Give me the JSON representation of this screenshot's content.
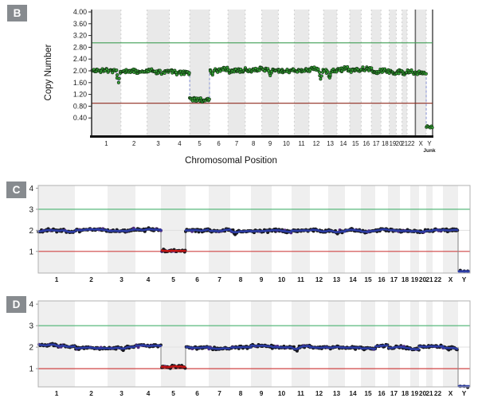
{
  "panels": {
    "b": {
      "badge": "B",
      "ylabel": "Copy Number",
      "xlabel": "Chromosomal Position"
    },
    "c": {
      "badge": "C"
    },
    "d": {
      "badge": "D"
    }
  },
  "chart_data": [
    {
      "panel": "B",
      "type": "scatter",
      "title": "",
      "ylabel": "Copy Number",
      "xlabel": "Chromosomal Position",
      "categories": [
        "1",
        "2",
        "3",
        "4",
        "5",
        "6",
        "7",
        "8",
        "9",
        "10",
        "11",
        "12",
        "13",
        "14",
        "15",
        "16",
        "17",
        "18",
        "19",
        "20",
        "21",
        "22",
        "X",
        "Y"
      ],
      "last_category_sublabel": "Junk",
      "category_weights": [
        46,
        41,
        35,
        32,
        31,
        29,
        27,
        26,
        26,
        25,
        23,
        23,
        21,
        20,
        18,
        16,
        15,
        13,
        11,
        9,
        8,
        13,
        17,
        10
      ],
      "ylim": [
        -0.19,
        4.08
      ],
      "yticks": [
        4.0,
        3.6,
        3.2,
        2.8,
        2.4,
        2.0,
        1.6,
        1.2,
        0.8,
        0.4
      ],
      "ytick_labels": [
        "4.00",
        "3.60",
        "3.20",
        "2.80",
        "2.40",
        "2.00",
        "1.60",
        "1.20",
        "0.80",
        "0.40"
      ],
      "thresholds": {
        "gain": 2.95,
        "loss": 0.9
      },
      "segments": [
        2.0,
        2.0,
        2.02,
        2.0,
        1.08,
        2.05,
        2.0,
        2.02,
        2.03,
        2.0,
        2.02,
        2.05,
        2.0,
        2.03,
        2.0,
        2.05,
        2.0,
        2.0,
        1.97,
        1.95,
        1.93,
        1.95,
        1.93,
        0.1
      ],
      "dips": [
        {
          "chromosome": "1",
          "pos": 0.92,
          "value": 1.6
        },
        {
          "chromosome": "12",
          "pos": 0.85,
          "value": 1.72
        },
        {
          "chromosome": "13",
          "pos": 0.4,
          "value": 1.76
        },
        {
          "chromosome": "9",
          "pos": 0.5,
          "value": 1.84
        },
        {
          "chromosome": "6",
          "pos": 0.15,
          "value": 1.86
        }
      ],
      "colors": {
        "point_fill": "#35a435",
        "point_stroke": "#123312",
        "gain_line": "#3f9e54",
        "loss_line": "#8e2a1e",
        "band": "#e9e9e9",
        "boundary_dash": "#cfcfcf",
        "dark_divider": "#6a6a6a",
        "connector": "#96a0d8",
        "trace": "#9aa4da",
        "axis": "#2a2a2a"
      },
      "seed": 11,
      "density": 1.05,
      "noise": 0.1
    },
    {
      "panel": "C",
      "type": "scatter_with_segments",
      "title": "",
      "ylabel": "",
      "xlabel": "",
      "categories": [
        "1",
        "2",
        "3",
        "4",
        "5",
        "6",
        "7",
        "8",
        "9",
        "10",
        "11",
        "12",
        "13",
        "14",
        "15",
        "16",
        "17",
        "18",
        "19",
        "20",
        "21",
        "22",
        "X",
        "Y"
      ],
      "category_weights": [
        46,
        41,
        35,
        32,
        31,
        29,
        27,
        26,
        26,
        25,
        23,
        23,
        21,
        20,
        18,
        16,
        15,
        13,
        11,
        9,
        8,
        13,
        19,
        15
      ],
      "ylim": [
        -0.03,
        4.13
      ],
      "yticks": [
        4,
        3,
        2,
        1
      ],
      "ytick_labels": [
        "4",
        "3",
        "2",
        "1"
      ],
      "thresholds": {
        "gain": 3.0,
        "loss": 1.0
      },
      "segments": [
        1.98,
        2.0,
        1.99,
        2.0,
        1.05,
        2.0,
        1.99,
        1.97,
        2.0,
        1.98,
        2.0,
        2.0,
        1.98,
        2.0,
        1.97,
        2.0,
        1.98,
        2.0,
        2.0,
        1.97,
        2.0,
        2.0,
        2.02,
        0.05
      ],
      "dips": [
        {
          "chromosome": "8",
          "pos": 0.25,
          "value": 1.8
        },
        {
          "chromosome": "13",
          "pos": 0.5,
          "value": 1.84
        }
      ],
      "colors": {
        "point_fill": "#17171d",
        "point_alt": "#4f2a7e",
        "gain_line": "#58b97c",
        "loss_line": "#cf4444",
        "band": "#efefef",
        "border": "#b0b0b0",
        "gridline": "#e0e0e0",
        "segment_normal": "#2c3da6",
        "segment_loss": "#c41414",
        "connector": "#8a8a8a"
      },
      "seed": 23,
      "density": 0.85,
      "noise": 0.09
    },
    {
      "panel": "D",
      "type": "scatter_with_segments",
      "title": "",
      "ylabel": "",
      "xlabel": "",
      "categories": [
        "1",
        "2",
        "3",
        "4",
        "5",
        "6",
        "7",
        "8",
        "9",
        "10",
        "11",
        "12",
        "13",
        "14",
        "15",
        "16",
        "17",
        "18",
        "19",
        "20",
        "21",
        "22",
        "X",
        "Y"
      ],
      "category_weights": [
        46,
        41,
        35,
        32,
        31,
        29,
        27,
        26,
        26,
        25,
        23,
        23,
        21,
        20,
        18,
        16,
        15,
        13,
        11,
        9,
        8,
        13,
        19,
        15
      ],
      "ylim": [
        0.15,
        4.15
      ],
      "yticks": [
        4,
        3,
        2,
        1
      ],
      "ytick_labels": [
        "4",
        "3",
        "2",
        "1"
      ],
      "thresholds": {
        "gain": 3.0,
        "loss": 1.0
      },
      "segments": [
        2.1,
        1.96,
        1.95,
        2.07,
        1.1,
        2.0,
        1.95,
        2.0,
        2.04,
        1.97,
        2.0,
        2.0,
        1.96,
        2.0,
        1.96,
        2.03,
        1.97,
        2.02,
        1.96,
        2.0,
        2.0,
        2.05,
        2.0,
        0.18
      ],
      "dips": [
        {
          "chromosome": "3",
          "pos": 0.55,
          "value": 1.85
        },
        {
          "chromosome": "11",
          "pos": 0.25,
          "value": 1.82
        }
      ],
      "colors": {
        "point_fill": "#17171d",
        "point_alt": "#4f2a7e",
        "gain_line": "#58b97c",
        "loss_line": "#cf4444",
        "band": "#efefef",
        "border": "#b0b0b0",
        "gridline": "#e0e0e0",
        "segment_normal": "#2c3da6",
        "segment_loss": "#c41414",
        "connector": "#8a8a8a"
      },
      "seed": 37,
      "density": 0.85,
      "noise": 0.09
    }
  ]
}
